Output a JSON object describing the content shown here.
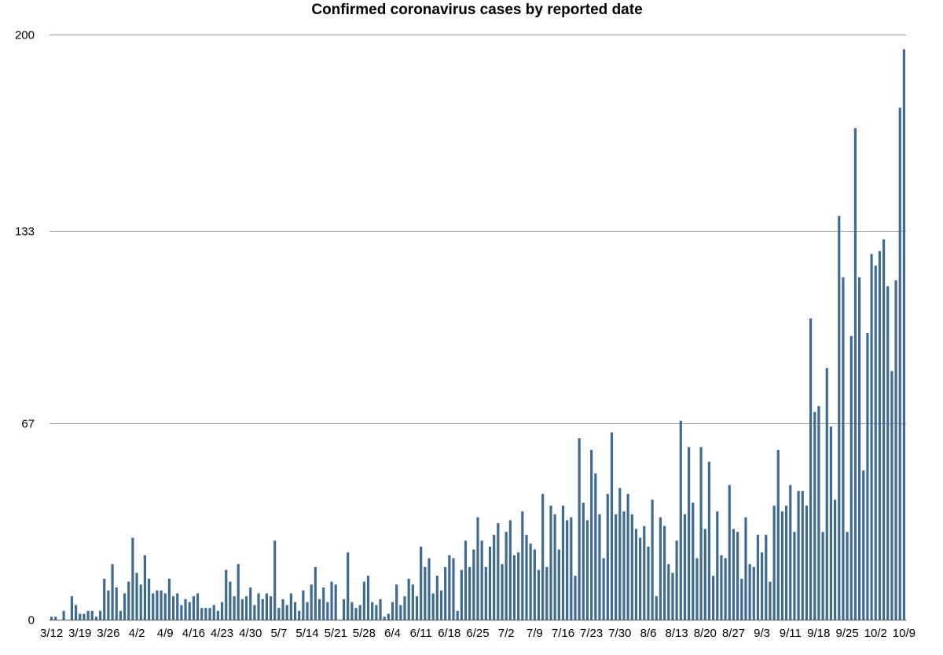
{
  "chart_data": {
    "type": "bar",
    "title": "Confirmed coronavirus cases by reported date",
    "xlabel": "",
    "ylabel": "",
    "ylim": [
      0,
      200
    ],
    "yticks": [
      0,
      67,
      133,
      200
    ],
    "grid": true,
    "legend": "none",
    "bar_color": "#3f6a93",
    "x_tick_labels": [
      "3/12",
      "3/19",
      "3/26",
      "4/2",
      "4/9",
      "4/16",
      "4/23",
      "4/30",
      "5/7",
      "5/14",
      "5/21",
      "5/28",
      "6/4",
      "6/11",
      "6/18",
      "6/25",
      "7/2",
      "7/9",
      "7/16",
      "7/23",
      "7/30",
      "8/6",
      "8/13",
      "8/20",
      "8/27",
      "9/3",
      "9/11",
      "9/18",
      "9/25",
      "10/2",
      "10/9"
    ],
    "x_tick_step_days": 7,
    "series": [
      {
        "values": [
          1,
          1,
          0,
          3,
          0,
          8,
          5,
          2,
          2,
          3,
          3,
          1,
          3,
          14,
          10,
          19,
          11,
          3,
          9,
          13,
          28,
          16,
          12,
          22,
          14,
          9,
          10,
          10,
          9,
          14,
          8,
          9,
          5,
          7,
          6,
          8,
          9,
          4,
          4,
          4,
          5,
          3,
          6,
          17,
          13,
          8,
          19,
          7,
          8,
          11,
          5,
          9,
          7,
          9,
          8,
          27,
          4,
          7,
          5,
          9,
          6,
          3,
          10,
          6,
          12,
          18,
          7,
          11,
          6,
          13,
          12,
          0,
          7,
          23,
          6,
          4,
          5,
          13,
          15,
          6,
          5,
          7,
          1,
          2,
          6,
          12,
          5,
          8,
          14,
          12,
          8,
          25,
          18,
          21,
          9,
          15,
          10,
          18,
          22,
          21,
          3,
          17,
          27,
          18,
          24,
          35,
          27,
          18,
          25,
          29,
          33,
          19,
          30,
          34,
          22,
          23,
          37,
          29,
          26,
          24,
          17,
          43,
          18,
          39,
          36,
          24,
          39,
          34,
          35,
          15,
          62,
          40,
          34,
          58,
          50,
          36,
          21,
          43,
          64,
          36,
          45,
          37,
          43,
          36,
          31,
          28,
          32,
          25,
          41,
          8,
          35,
          32,
          19,
          16,
          27,
          68,
          36,
          59,
          40,
          21,
          59,
          31,
          54,
          15,
          37,
          22,
          21,
          46,
          31,
          30,
          14,
          35,
          19,
          18,
          29,
          23,
          29,
          13,
          39,
          58,
          37,
          39,
          46,
          30,
          44,
          44,
          39,
          103,
          71,
          73,
          30,
          86,
          66,
          41,
          138,
          117,
          30,
          97,
          168,
          117,
          51,
          98,
          125,
          121,
          126,
          130,
          114,
          85,
          116,
          175,
          195
        ]
      }
    ]
  }
}
